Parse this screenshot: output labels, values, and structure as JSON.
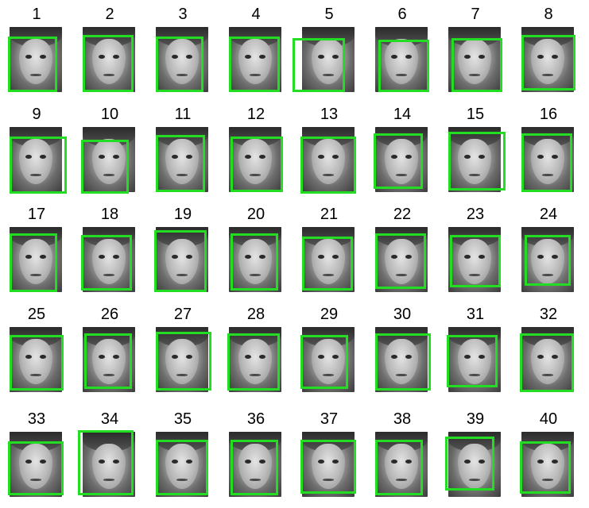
{
  "faces": [
    {
      "label": "1"
    },
    {
      "label": "2"
    },
    {
      "label": "3"
    },
    {
      "label": "4"
    },
    {
      "label": "5"
    },
    {
      "label": "6"
    },
    {
      "label": "7"
    },
    {
      "label": "8"
    },
    {
      "label": "9"
    },
    {
      "label": "10"
    },
    {
      "label": "11"
    },
    {
      "label": "12"
    },
    {
      "label": "13"
    },
    {
      "label": "14"
    },
    {
      "label": "15"
    },
    {
      "label": "16"
    },
    {
      "label": "17"
    },
    {
      "label": "18"
    },
    {
      "label": "19"
    },
    {
      "label": "20"
    },
    {
      "label": "21"
    },
    {
      "label": "22"
    },
    {
      "label": "23"
    },
    {
      "label": "24"
    },
    {
      "label": "25"
    },
    {
      "label": "26"
    },
    {
      "label": "27"
    },
    {
      "label": "28"
    },
    {
      "label": "29"
    },
    {
      "label": "30"
    },
    {
      "label": "31"
    },
    {
      "label": "32"
    },
    {
      "label": "33"
    },
    {
      "label": "34"
    },
    {
      "label": "35"
    },
    {
      "label": "36"
    },
    {
      "label": "37"
    },
    {
      "label": "38"
    },
    {
      "label": "39"
    },
    {
      "label": "40"
    }
  ],
  "colors": {
    "box": "#22dd22",
    "background": "#ffffff"
  }
}
